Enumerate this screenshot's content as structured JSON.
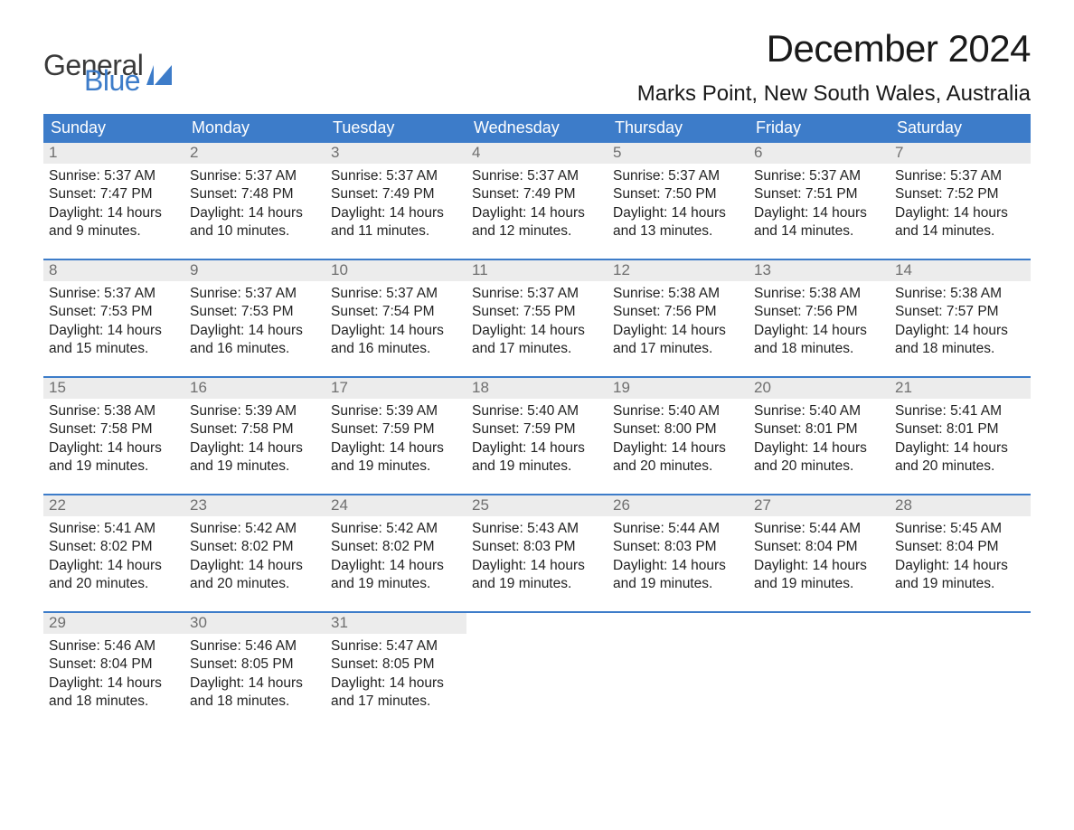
{
  "logo": {
    "general": "General",
    "blue": "Blue"
  },
  "title": "December 2024",
  "location": "Marks Point, New South Wales, Australia",
  "colors": {
    "brand_blue": "#3d7cc9",
    "header_bg": "#3d7cc9",
    "header_text": "#ffffff",
    "daynum_bg": "#ececec",
    "daynum_text": "#6f6f6f",
    "body_text": "#222222",
    "page_bg": "#ffffff"
  },
  "day_names": [
    "Sunday",
    "Monday",
    "Tuesday",
    "Wednesday",
    "Thursday",
    "Friday",
    "Saturday"
  ],
  "weeks": [
    [
      {
        "n": "1",
        "sunrise": "Sunrise: 5:37 AM",
        "sunset": "Sunset: 7:47 PM",
        "dl1": "Daylight: 14 hours",
        "dl2": "and 9 minutes."
      },
      {
        "n": "2",
        "sunrise": "Sunrise: 5:37 AM",
        "sunset": "Sunset: 7:48 PM",
        "dl1": "Daylight: 14 hours",
        "dl2": "and 10 minutes."
      },
      {
        "n": "3",
        "sunrise": "Sunrise: 5:37 AM",
        "sunset": "Sunset: 7:49 PM",
        "dl1": "Daylight: 14 hours",
        "dl2": "and 11 minutes."
      },
      {
        "n": "4",
        "sunrise": "Sunrise: 5:37 AM",
        "sunset": "Sunset: 7:49 PM",
        "dl1": "Daylight: 14 hours",
        "dl2": "and 12 minutes."
      },
      {
        "n": "5",
        "sunrise": "Sunrise: 5:37 AM",
        "sunset": "Sunset: 7:50 PM",
        "dl1": "Daylight: 14 hours",
        "dl2": "and 13 minutes."
      },
      {
        "n": "6",
        "sunrise": "Sunrise: 5:37 AM",
        "sunset": "Sunset: 7:51 PM",
        "dl1": "Daylight: 14 hours",
        "dl2": "and 14 minutes."
      },
      {
        "n": "7",
        "sunrise": "Sunrise: 5:37 AM",
        "sunset": "Sunset: 7:52 PM",
        "dl1": "Daylight: 14 hours",
        "dl2": "and 14 minutes."
      }
    ],
    [
      {
        "n": "8",
        "sunrise": "Sunrise: 5:37 AM",
        "sunset": "Sunset: 7:53 PM",
        "dl1": "Daylight: 14 hours",
        "dl2": "and 15 minutes."
      },
      {
        "n": "9",
        "sunrise": "Sunrise: 5:37 AM",
        "sunset": "Sunset: 7:53 PM",
        "dl1": "Daylight: 14 hours",
        "dl2": "and 16 minutes."
      },
      {
        "n": "10",
        "sunrise": "Sunrise: 5:37 AM",
        "sunset": "Sunset: 7:54 PM",
        "dl1": "Daylight: 14 hours",
        "dl2": "and 16 minutes."
      },
      {
        "n": "11",
        "sunrise": "Sunrise: 5:37 AM",
        "sunset": "Sunset: 7:55 PM",
        "dl1": "Daylight: 14 hours",
        "dl2": "and 17 minutes."
      },
      {
        "n": "12",
        "sunrise": "Sunrise: 5:38 AM",
        "sunset": "Sunset: 7:56 PM",
        "dl1": "Daylight: 14 hours",
        "dl2": "and 17 minutes."
      },
      {
        "n": "13",
        "sunrise": "Sunrise: 5:38 AM",
        "sunset": "Sunset: 7:56 PM",
        "dl1": "Daylight: 14 hours",
        "dl2": "and 18 minutes."
      },
      {
        "n": "14",
        "sunrise": "Sunrise: 5:38 AM",
        "sunset": "Sunset: 7:57 PM",
        "dl1": "Daylight: 14 hours",
        "dl2": "and 18 minutes."
      }
    ],
    [
      {
        "n": "15",
        "sunrise": "Sunrise: 5:38 AM",
        "sunset": "Sunset: 7:58 PM",
        "dl1": "Daylight: 14 hours",
        "dl2": "and 19 minutes."
      },
      {
        "n": "16",
        "sunrise": "Sunrise: 5:39 AM",
        "sunset": "Sunset: 7:58 PM",
        "dl1": "Daylight: 14 hours",
        "dl2": "and 19 minutes."
      },
      {
        "n": "17",
        "sunrise": "Sunrise: 5:39 AM",
        "sunset": "Sunset: 7:59 PM",
        "dl1": "Daylight: 14 hours",
        "dl2": "and 19 minutes."
      },
      {
        "n": "18",
        "sunrise": "Sunrise: 5:40 AM",
        "sunset": "Sunset: 7:59 PM",
        "dl1": "Daylight: 14 hours",
        "dl2": "and 19 minutes."
      },
      {
        "n": "19",
        "sunrise": "Sunrise: 5:40 AM",
        "sunset": "Sunset: 8:00 PM",
        "dl1": "Daylight: 14 hours",
        "dl2": "and 20 minutes."
      },
      {
        "n": "20",
        "sunrise": "Sunrise: 5:40 AM",
        "sunset": "Sunset: 8:01 PM",
        "dl1": "Daylight: 14 hours",
        "dl2": "and 20 minutes."
      },
      {
        "n": "21",
        "sunrise": "Sunrise: 5:41 AM",
        "sunset": "Sunset: 8:01 PM",
        "dl1": "Daylight: 14 hours",
        "dl2": "and 20 minutes."
      }
    ],
    [
      {
        "n": "22",
        "sunrise": "Sunrise: 5:41 AM",
        "sunset": "Sunset: 8:02 PM",
        "dl1": "Daylight: 14 hours",
        "dl2": "and 20 minutes."
      },
      {
        "n": "23",
        "sunrise": "Sunrise: 5:42 AM",
        "sunset": "Sunset: 8:02 PM",
        "dl1": "Daylight: 14 hours",
        "dl2": "and 20 minutes."
      },
      {
        "n": "24",
        "sunrise": "Sunrise: 5:42 AM",
        "sunset": "Sunset: 8:02 PM",
        "dl1": "Daylight: 14 hours",
        "dl2": "and 19 minutes."
      },
      {
        "n": "25",
        "sunrise": "Sunrise: 5:43 AM",
        "sunset": "Sunset: 8:03 PM",
        "dl1": "Daylight: 14 hours",
        "dl2": "and 19 minutes."
      },
      {
        "n": "26",
        "sunrise": "Sunrise: 5:44 AM",
        "sunset": "Sunset: 8:03 PM",
        "dl1": "Daylight: 14 hours",
        "dl2": "and 19 minutes."
      },
      {
        "n": "27",
        "sunrise": "Sunrise: 5:44 AM",
        "sunset": "Sunset: 8:04 PM",
        "dl1": "Daylight: 14 hours",
        "dl2": "and 19 minutes."
      },
      {
        "n": "28",
        "sunrise": "Sunrise: 5:45 AM",
        "sunset": "Sunset: 8:04 PM",
        "dl1": "Daylight: 14 hours",
        "dl2": "and 19 minutes."
      }
    ],
    [
      {
        "n": "29",
        "sunrise": "Sunrise: 5:46 AM",
        "sunset": "Sunset: 8:04 PM",
        "dl1": "Daylight: 14 hours",
        "dl2": "and 18 minutes."
      },
      {
        "n": "30",
        "sunrise": "Sunrise: 5:46 AM",
        "sunset": "Sunset: 8:05 PM",
        "dl1": "Daylight: 14 hours",
        "dl2": "and 18 minutes."
      },
      {
        "n": "31",
        "sunrise": "Sunrise: 5:47 AM",
        "sunset": "Sunset: 8:05 PM",
        "dl1": "Daylight: 14 hours",
        "dl2": "and 17 minutes."
      },
      {
        "n": "",
        "sunrise": "",
        "sunset": "",
        "dl1": "",
        "dl2": ""
      },
      {
        "n": "",
        "sunrise": "",
        "sunset": "",
        "dl1": "",
        "dl2": ""
      },
      {
        "n": "",
        "sunrise": "",
        "sunset": "",
        "dl1": "",
        "dl2": ""
      },
      {
        "n": "",
        "sunrise": "",
        "sunset": "",
        "dl1": "",
        "dl2": ""
      }
    ]
  ]
}
